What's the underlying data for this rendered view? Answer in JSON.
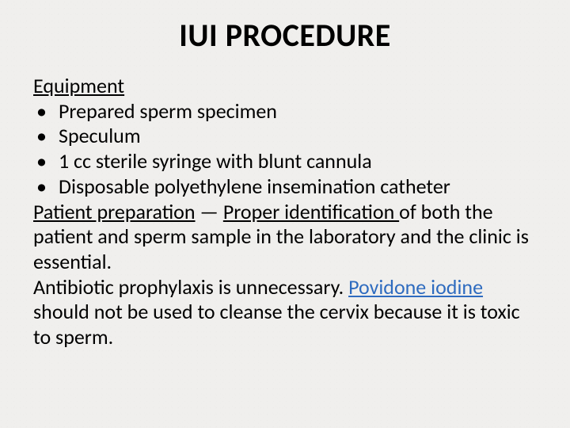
{
  "title": {
    "text": "IUI PROCEDURE",
    "fontsize": 40,
    "color": "#000000"
  },
  "body": {
    "fontsize": 26,
    "color": "#000000",
    "link_color": "#2e6bbf",
    "equipment_heading": "Equipment",
    "bullets": [
      "Prepared sperm specimen",
      "Speculum",
      "1 cc sterile syringe with blunt cannula",
      "Disposable polyethylene insemination catheter"
    ],
    "patient_prep_label": "Patient preparation",
    "patient_prep_dash": " — ",
    "proper_id_label": "Proper identification ",
    "patient_prep_rest": "of both the patient and sperm sample in the laboratory and the clinic is essential.",
    "antibiotic_pre": "Antibiotic prophylaxis is unnecessary. ",
    "povidone_link": "Povidone iodine",
    "antibiotic_post": " should not be used to cleanse the cervix because it is toxic to sperm."
  },
  "background_color": "#f0efed"
}
